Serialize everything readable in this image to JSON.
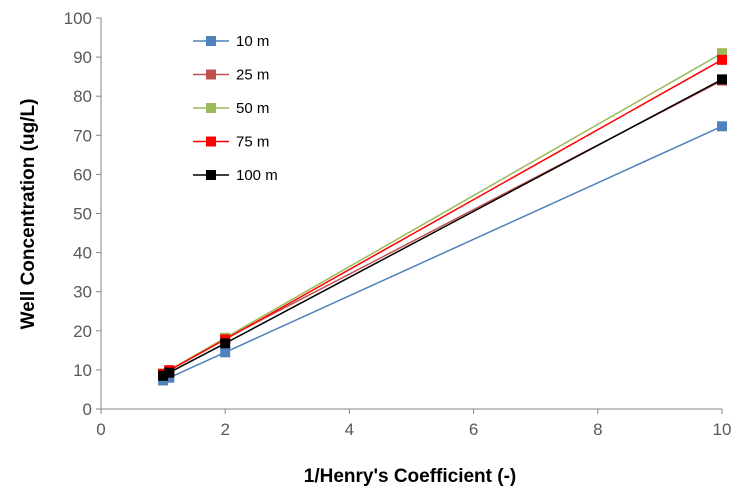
{
  "chart_data": {
    "type": "line",
    "xlabel": "1/Henry's Coefficient (-)",
    "ylabel": "Well Concentration (ug/L)",
    "xlim": [
      0,
      10
    ],
    "ylim": [
      0,
      100
    ],
    "xticks": [
      "0",
      "2",
      "4",
      "6",
      "8",
      "10"
    ],
    "yticks": [
      "0",
      "10",
      "20",
      "30",
      "40",
      "50",
      "60",
      "70",
      "80",
      "90",
      "100"
    ],
    "grid": false,
    "legend_position": "top-left",
    "x": [
      1,
      1.1,
      2,
      10
    ],
    "series": [
      {
        "name": "10 m",
        "color": "#4f81bd",
        "values": [
          7.3,
          8.0,
          14.5,
          72.3
        ]
      },
      {
        "name": "25 m",
        "color": "#c0504d",
        "values": [
          9.0,
          9.9,
          18.0,
          84.0
        ]
      },
      {
        "name": "50 m",
        "color": "#9bbb59",
        "values": [
          9.0,
          9.9,
          18.2,
          91.0
        ]
      },
      {
        "name": "75 m",
        "color": "#ff0000",
        "values": [
          9.0,
          9.9,
          17.8,
          89.3
        ]
      },
      {
        "name": "100 m",
        "color": "#000000",
        "values": [
          8.5,
          9.3,
          16.8,
          84.3
        ]
      }
    ]
  }
}
